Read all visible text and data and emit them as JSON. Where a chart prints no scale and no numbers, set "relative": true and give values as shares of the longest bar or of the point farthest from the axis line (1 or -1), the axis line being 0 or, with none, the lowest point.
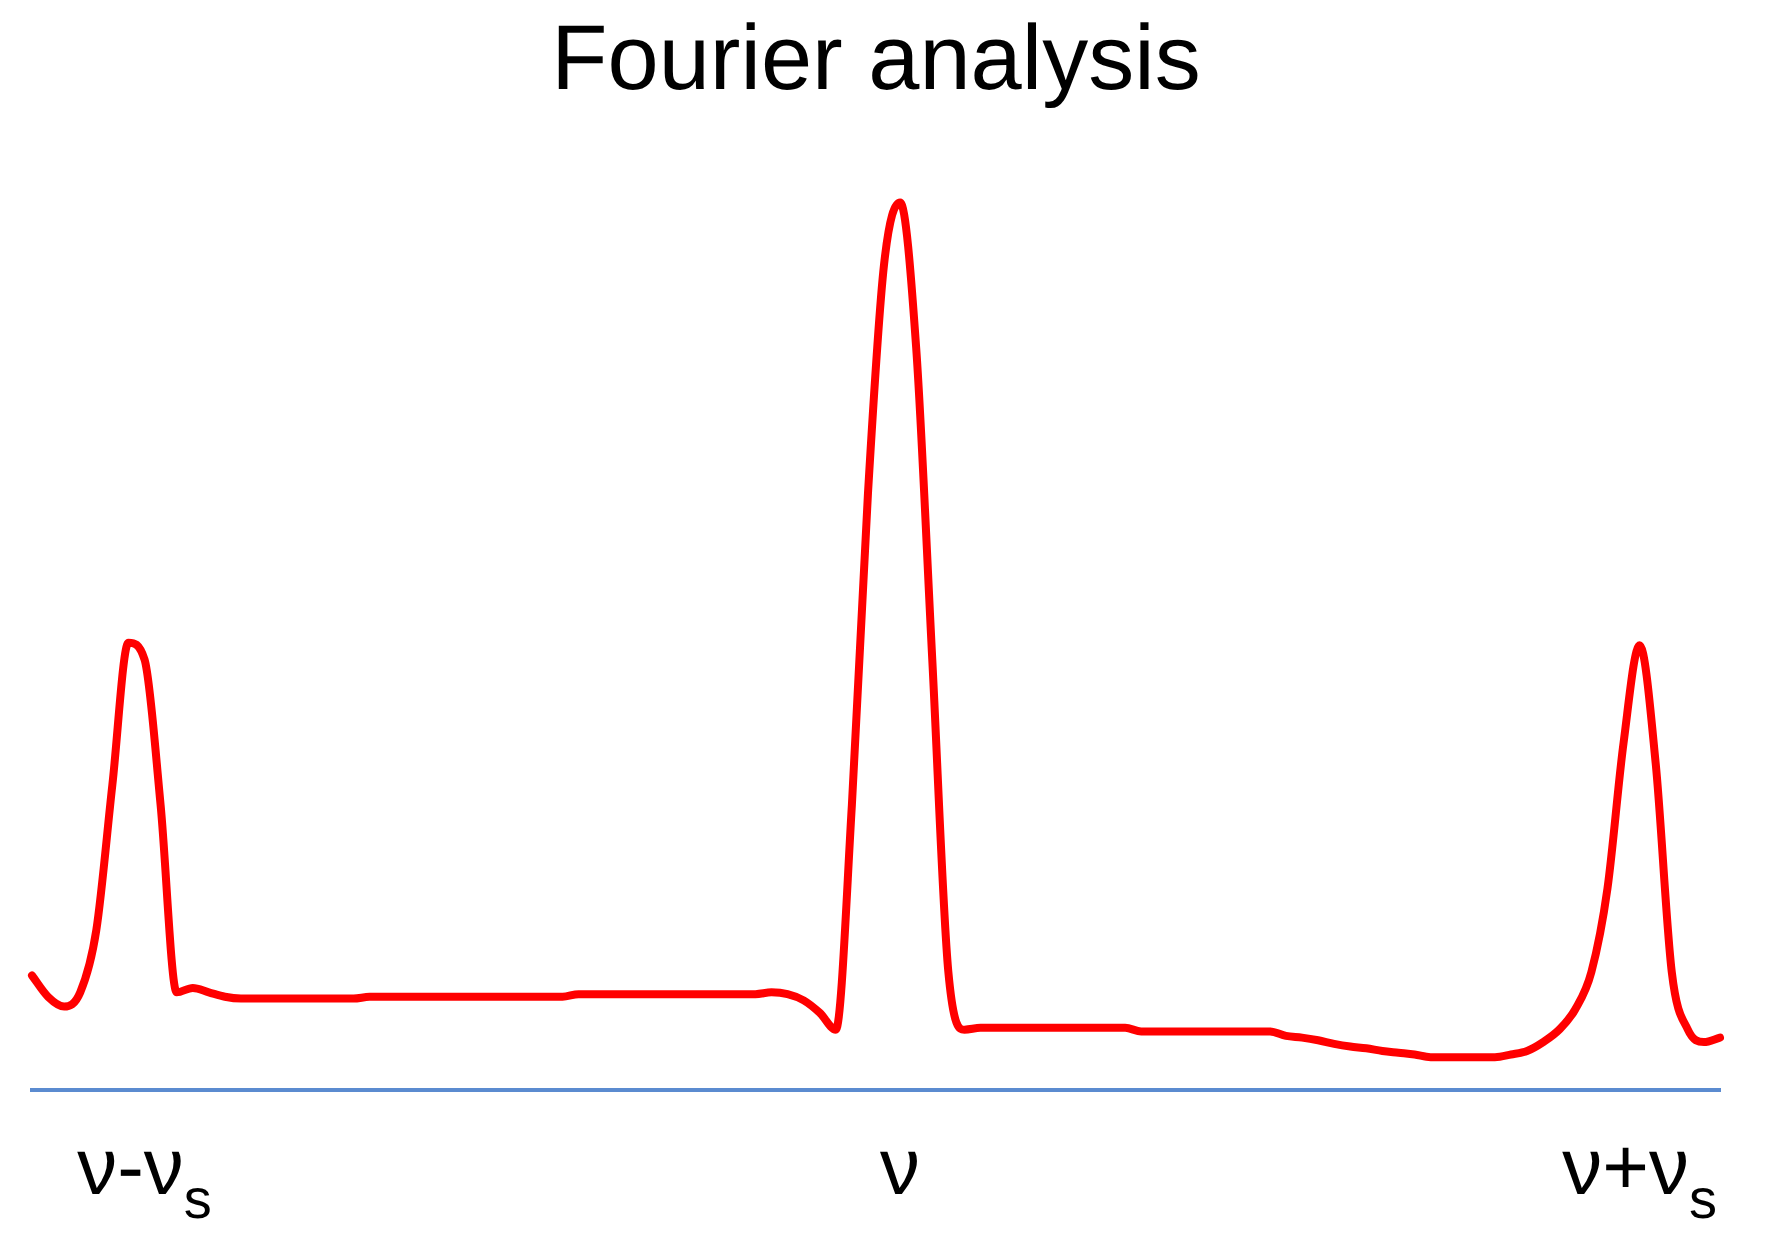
{
  "chart_data": {
    "type": "line",
    "title": "Fourier analysis",
    "relative": true,
    "legend": false,
    "grid": false,
    "marker": "none",
    "line_style": "solid",
    "categories": [
      null,
      null,
      null,
      null,
      null,
      null,
      null,
      "ν-ν$_{s}$",
      null,
      null,
      null,
      null,
      null,
      null,
      null,
      null,
      null,
      null,
      null,
      null,
      null,
      null,
      null,
      null,
      null,
      null,
      null,
      null,
      null,
      null,
      null,
      null,
      null,
      null,
      null,
      null,
      null,
      null,
      null,
      null,
      null,
      null,
      null,
      null,
      null,
      null,
      null,
      null,
      null,
      null,
      null,
      null,
      null,
      null,
      "ν",
      null,
      null,
      null,
      null,
      null,
      null,
      null,
      null,
      null,
      null,
      null,
      null,
      null,
      null,
      null,
      null,
      null,
      null,
      null,
      null,
      null,
      null,
      null,
      null,
      null,
      null,
      null,
      null,
      null,
      null,
      null,
      null,
      null,
      null,
      null,
      null,
      null,
      null,
      null,
      null,
      null,
      null,
      null,
      null,
      null,
      "ν+ν$_{s}$",
      null,
      null,
      null,
      null,
      null
    ],
    "series": [
      {
        "color": "#ff0000",
        "values": [
          0.129,
          0.105,
          0.094,
          0.11,
          0.18,
          0.344,
          0.504,
          0.485,
          0.321,
          0.11,
          0.115,
          0.11,
          0.105,
          0.103,
          0.103,
          0.103,
          0.103,
          0.103,
          0.103,
          0.103,
          0.103,
          0.105,
          0.105,
          0.105,
          0.105,
          0.105,
          0.105,
          0.105,
          0.105,
          0.105,
          0.105,
          0.105,
          0.105,
          0.105,
          0.108,
          0.108,
          0.108,
          0.108,
          0.108,
          0.108,
          0.108,
          0.108,
          0.108,
          0.108,
          0.108,
          0.108,
          0.11,
          0.108,
          0.101,
          0.087,
          0.068,
          0.321,
          0.672,
          0.93,
          1.0,
          0.836,
          0.485,
          0.133,
          0.068,
          0.07,
          0.07,
          0.07,
          0.07,
          0.07,
          0.07,
          0.07,
          0.07,
          0.07,
          0.07,
          0.066,
          0.066,
          0.066,
          0.066,
          0.066,
          0.066,
          0.066,
          0.066,
          0.066,
          0.061,
          0.059,
          0.056,
          0.052,
          0.049,
          0.047,
          0.044,
          0.042,
          0.04,
          0.037,
          0.037,
          0.037,
          0.037,
          0.037,
          0.04,
          0.044,
          0.054,
          0.068,
          0.091,
          0.133,
          0.227,
          0.391,
          0.501,
          0.368,
          0.133,
          0.068,
          0.054,
          0.059
        ]
      }
    ]
  }
}
